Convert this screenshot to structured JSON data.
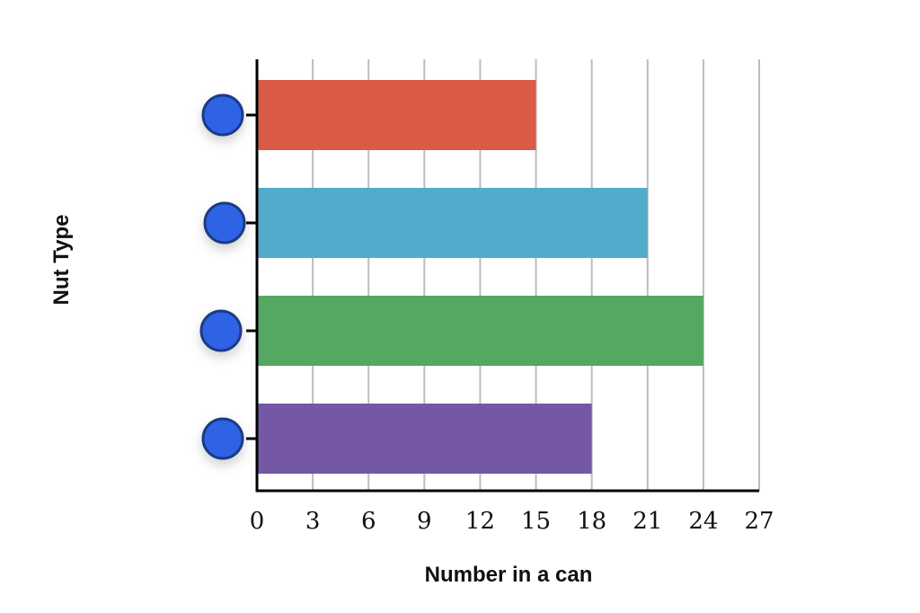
{
  "chart_data": {
    "type": "bar",
    "orientation": "horizontal",
    "categories": [
      "",
      "",
      "",
      ""
    ],
    "values": [
      15,
      21,
      24,
      18
    ],
    "colors": [
      "#d95b46",
      "#52abcb",
      "#54a862",
      "#7457a5"
    ],
    "marker_color": "#2f63e6",
    "xlabel": "Number in a can",
    "ylabel": "Nut Type",
    "xlim": [
      0,
      27
    ],
    "xticks": [
      "0",
      "3",
      "6",
      "9",
      "12",
      "15",
      "18",
      "21",
      "24",
      "27"
    ],
    "grid": "vertical",
    "category_markers": "blue-circle-handle-icon"
  }
}
